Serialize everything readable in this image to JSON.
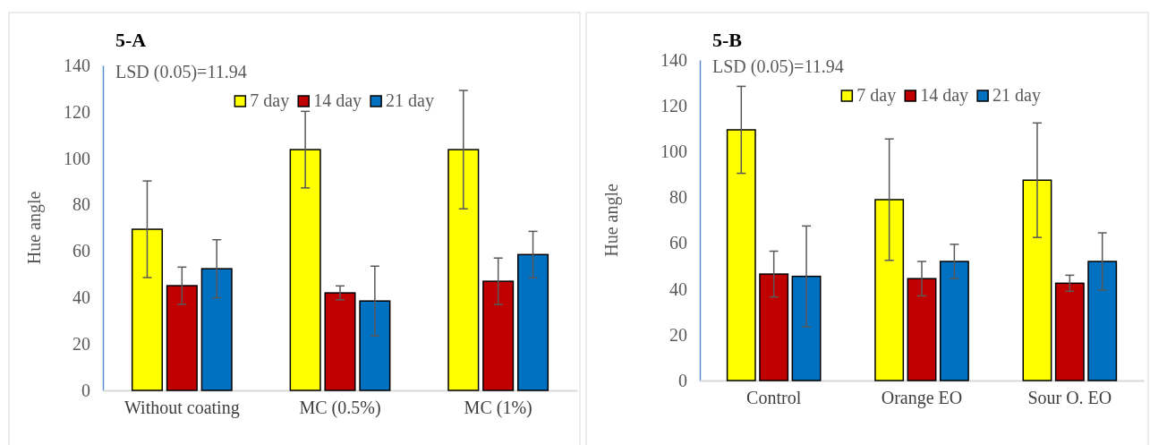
{
  "chart_data": [
    {
      "type": "bar",
      "title": "5-A",
      "ylabel": "Hue angle",
      "annotations": [
        "LSD (0.05)=11.94"
      ],
      "categories": [
        "Without coating",
        "MC (0.5%)",
        "MC (1%)"
      ],
      "series": [
        {
          "name": "7 day",
          "color": "#ffff00",
          "values": [
            69.4,
            103.7,
            103.7
          ],
          "errors": [
            20.8,
            16.5,
            25.5
          ]
        },
        {
          "name": "14 day",
          "color": "#c00000",
          "values": [
            45.1,
            42,
            47
          ],
          "errors": [
            8,
            3,
            10
          ]
        },
        {
          "name": "21 day",
          "color": "#0070c0",
          "values": [
            52.4,
            38.5,
            58.5
          ],
          "errors": [
            12.5,
            15,
            10
          ]
        }
      ],
      "ylim": [
        0,
        140
      ],
      "yticks": [
        0,
        20,
        40,
        60,
        80,
        100,
        120,
        140
      ],
      "grid": false,
      "legend": "top right"
    },
    {
      "type": "bar",
      "title": "5-B",
      "ylabel": "Hue angle",
      "annotations": [
        "LSD (0.05)=11.94"
      ],
      "categories": [
        "Control",
        "Orange EO",
        "Sour O. EO"
      ],
      "series": [
        {
          "name": "7 day",
          "color": "#ffff00",
          "values": [
            109.5,
            79,
            87.5
          ],
          "errors": [
            19,
            26.5,
            25
          ]
        },
        {
          "name": "14 day",
          "color": "#c00000",
          "values": [
            46.5,
            44.5,
            42.5
          ],
          "errors": [
            10,
            7.5,
            3.5
          ]
        },
        {
          "name": "21 day",
          "color": "#0070c0",
          "values": [
            45.5,
            52,
            52
          ],
          "errors": [
            22,
            7.5,
            12.5
          ]
        }
      ],
      "ylim": [
        0,
        140
      ],
      "yticks": [
        0,
        20,
        40,
        60,
        80,
        100,
        120,
        140
      ],
      "grid": false,
      "legend": "top right"
    }
  ]
}
